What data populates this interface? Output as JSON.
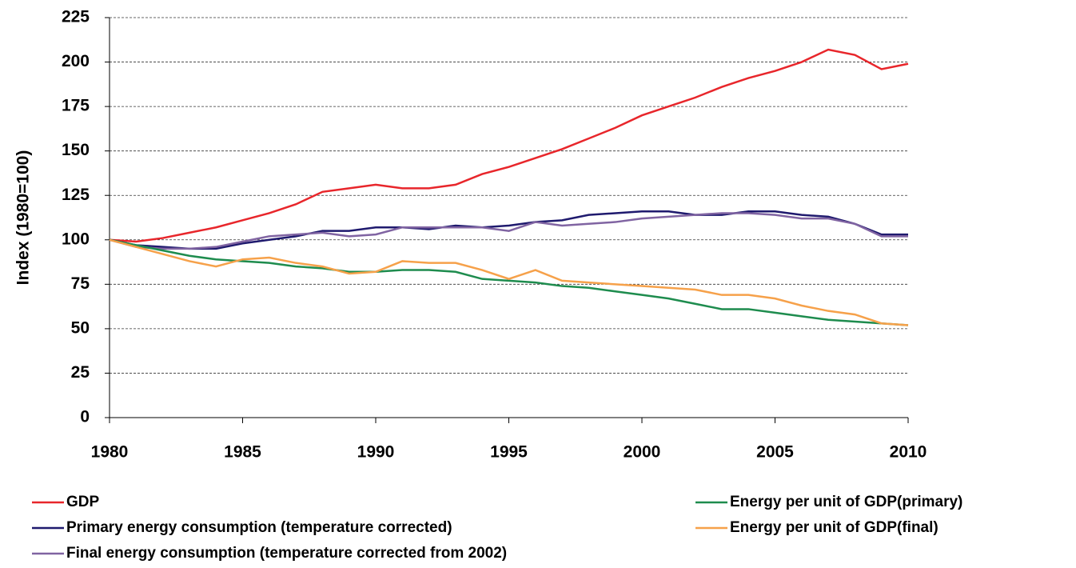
{
  "chart_data": {
    "type": "line",
    "y_label": "Index (1980=100)",
    "x": [
      1980,
      1981,
      1982,
      1983,
      1984,
      1985,
      1986,
      1987,
      1988,
      1989,
      1990,
      1991,
      1992,
      1993,
      1994,
      1995,
      1996,
      1997,
      1998,
      1999,
      2000,
      2001,
      2002,
      2003,
      2004,
      2005,
      2006,
      2007,
      2008,
      2009,
      2010
    ],
    "series": [
      {
        "name": "GDP",
        "color": "#e8262b",
        "values": [
          100,
          99,
          101,
          104,
          107,
          111,
          115,
          120,
          127,
          129,
          131,
          129,
          129,
          131,
          137,
          141,
          146,
          151,
          157,
          163,
          170,
          175,
          180,
          186,
          191,
          195,
          200,
          207,
          204,
          196,
          199
        ]
      },
      {
        "name": "Primary energy consumption (temperature corrected)",
        "color": "#1f1a6e",
        "values": [
          100,
          97,
          96,
          95,
          95,
          98,
          100,
          102,
          105,
          105,
          107,
          107,
          106,
          108,
          107,
          108,
          110,
          111,
          114,
          115,
          116,
          116,
          114,
          114,
          116,
          116,
          114,
          113,
          109,
          103,
          103
        ]
      },
      {
        "name": "Final energy consumption (temperature corrected from 2002)",
        "color": "#8064a2",
        "values": [
          100,
          96,
          95,
          95,
          96,
          99,
          102,
          103,
          104,
          102,
          103,
          107,
          107,
          107,
          107,
          105,
          110,
          108,
          109,
          110,
          112,
          113,
          114,
          115,
          115,
          114,
          112,
          112,
          109,
          102,
          102
        ]
      },
      {
        "name": "Energy per unit of GDP(primary)",
        "color": "#1e8c4e",
        "values": [
          100,
          97,
          94,
          91,
          89,
          88,
          87,
          85,
          84,
          82,
          82,
          83,
          83,
          82,
          78,
          77,
          76,
          74,
          73,
          71,
          69,
          67,
          64,
          61,
          61,
          59,
          57,
          55,
          54,
          53,
          52
        ]
      },
      {
        "name": "Energy per unit of GDP(final)",
        "color": "#f6a14a",
        "values": [
          100,
          96,
          92,
          88,
          85,
          89,
          90,
          87,
          85,
          81,
          82,
          88,
          87,
          87,
          83,
          78,
          83,
          77,
          76,
          75,
          74,
          73,
          72,
          69,
          69,
          67,
          63,
          60,
          58,
          53,
          52
        ]
      }
    ],
    "xlim": [
      1980,
      2010
    ],
    "xticks": [
      1980,
      1985,
      1990,
      1995,
      2000,
      2005,
      2010
    ],
    "ylim": [
      0,
      225
    ],
    "yticks": [
      0,
      25,
      50,
      75,
      100,
      125,
      150,
      175,
      200,
      225
    ],
    "grid": true,
    "legend": "bottom"
  }
}
